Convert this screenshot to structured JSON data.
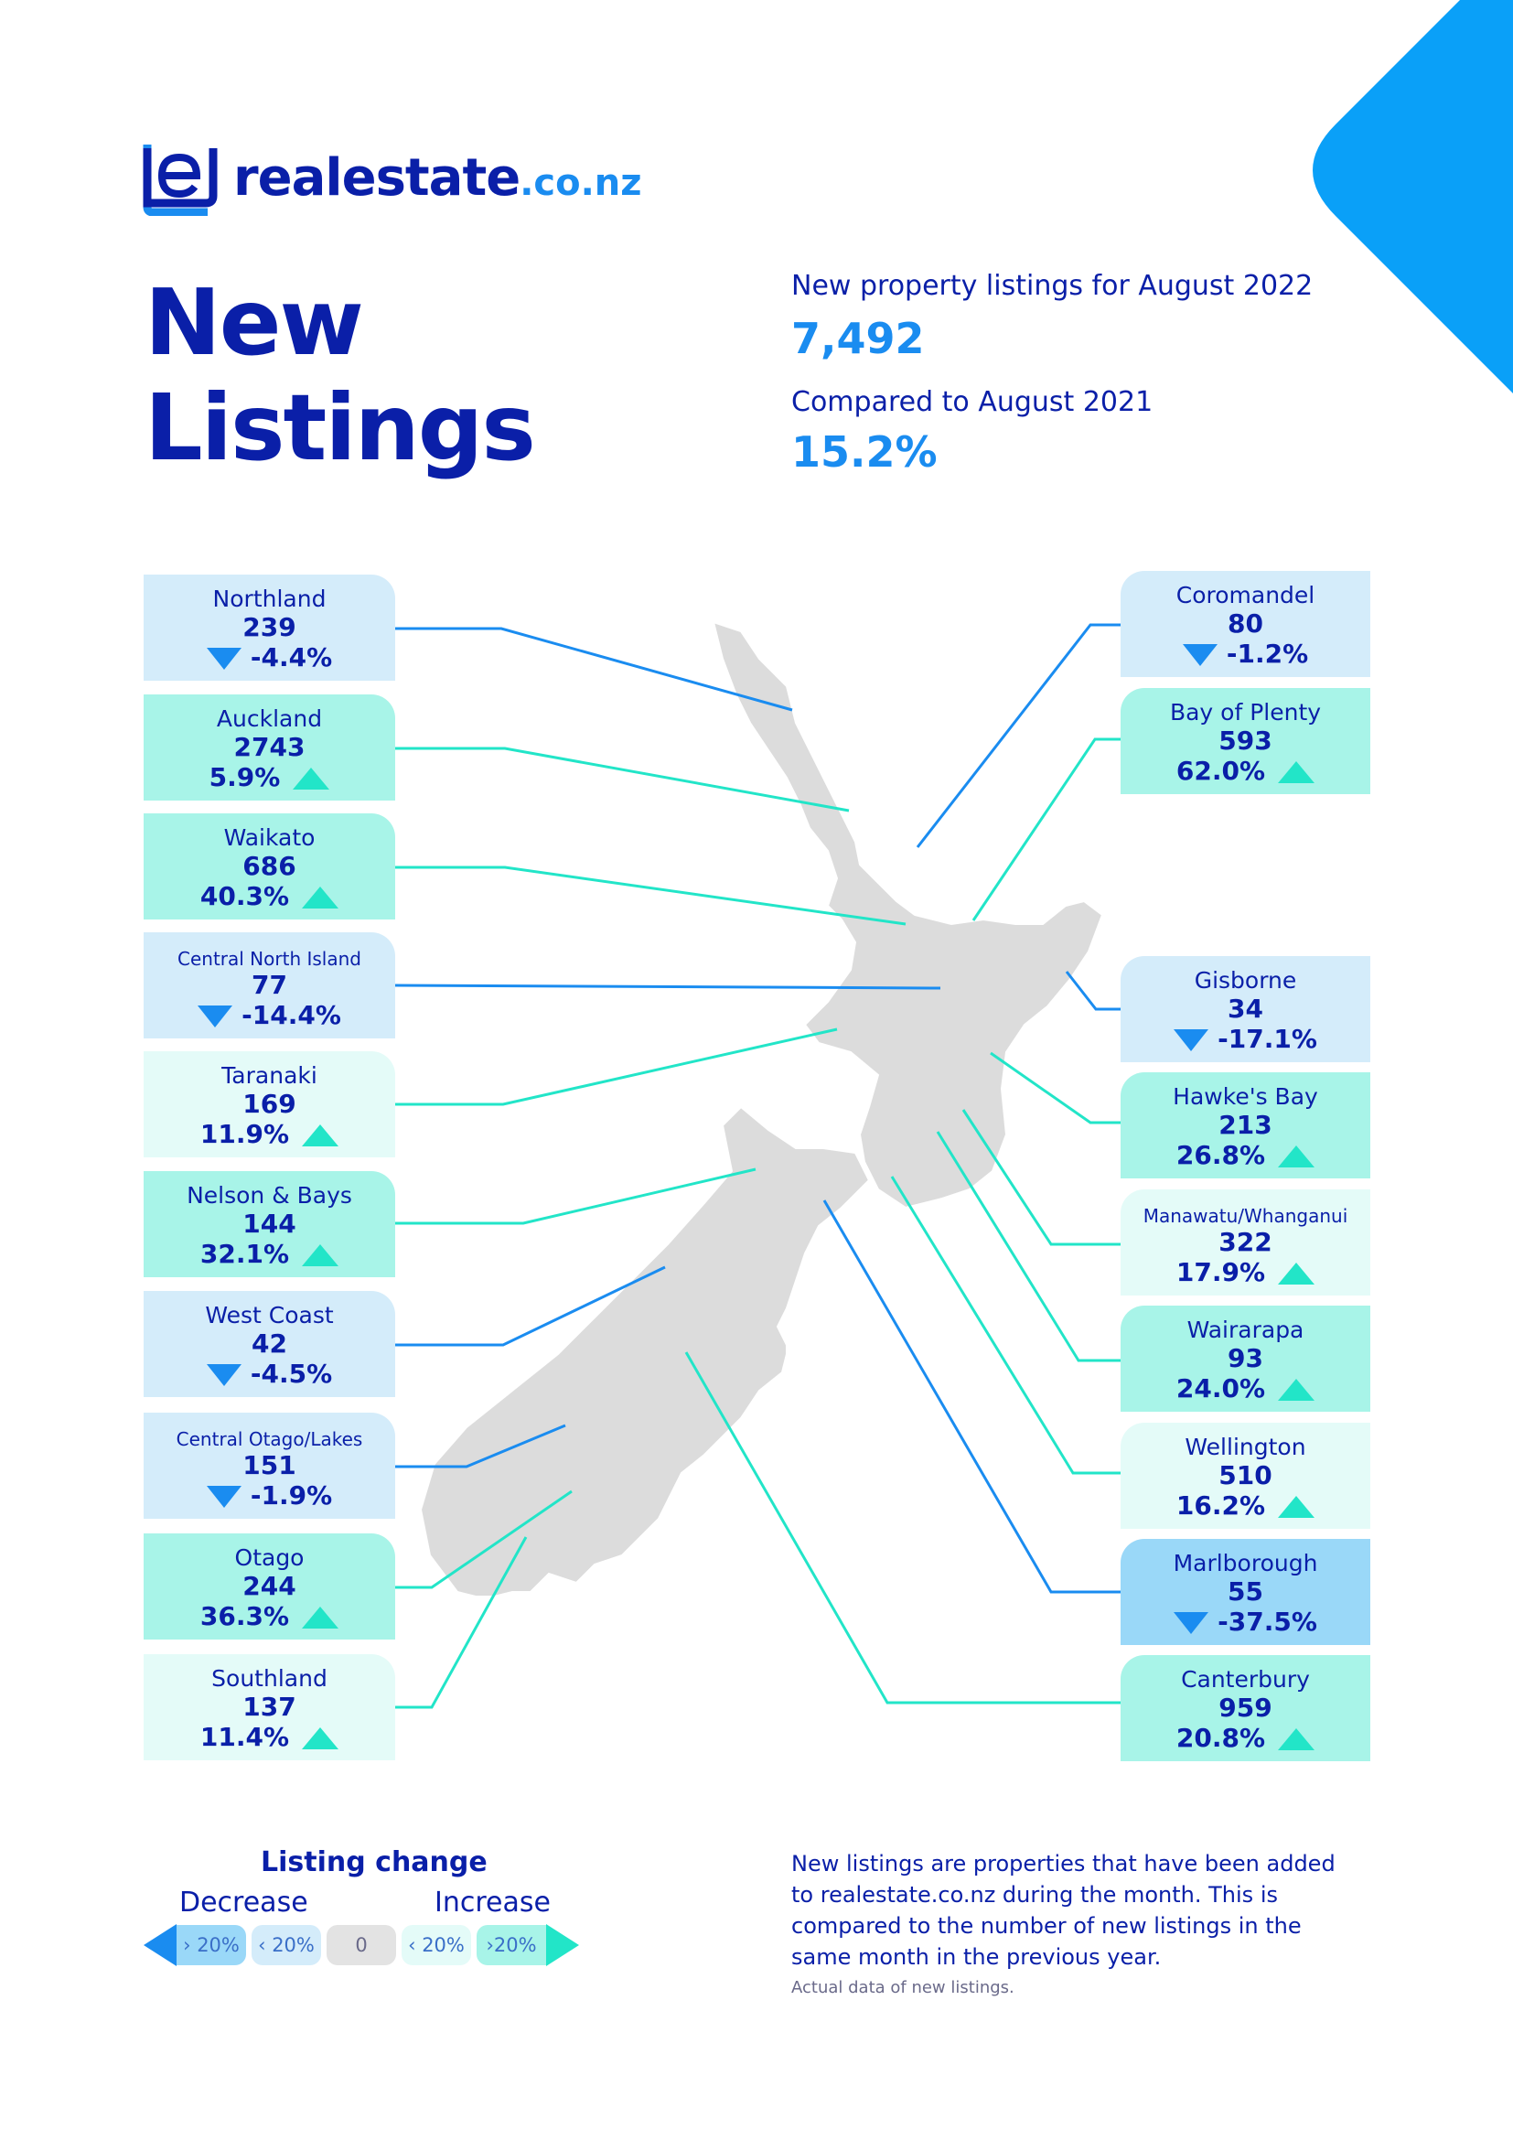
{
  "brand": {
    "name": "realestate",
    "tld": ".co.nz",
    "primary": "#0a1fa8",
    "accent": "#1a8cf0",
    "teal": "#22e5c8"
  },
  "title": {
    "line1": "New",
    "line2": "Listings"
  },
  "stats": {
    "listings_label": "New property listings for August 2022",
    "listings_value": "7,492",
    "compare_label": "Compared to August 2021",
    "compare_value": "15.2%"
  },
  "regions": [
    {
      "name": "Northland",
      "count": "239",
      "change": "-4.4%",
      "direction": "down",
      "band": "decrease-lt20"
    },
    {
      "name": "Auckland",
      "count": "2743",
      "change": "5.9%",
      "direction": "up",
      "band": "increase-lt20"
    },
    {
      "name": "Waikato",
      "count": "686",
      "change": "40.3%",
      "direction": "up",
      "band": "increase-gt20"
    },
    {
      "name": "Central North Island",
      "count": "77",
      "change": "-14.4%",
      "direction": "down",
      "band": "decrease-lt20"
    },
    {
      "name": "Taranaki",
      "count": "169",
      "change": "11.9%",
      "direction": "up",
      "band": "increase-lt20"
    },
    {
      "name": "Nelson & Bays",
      "count": "144",
      "change": "32.1%",
      "direction": "up",
      "band": "increase-gt20"
    },
    {
      "name": "West Coast",
      "count": "42",
      "change": "-4.5%",
      "direction": "down",
      "band": "decrease-lt20"
    },
    {
      "name": "Central Otago/Lakes",
      "count": "151",
      "change": "-1.9%",
      "direction": "down",
      "band": "decrease-lt20"
    },
    {
      "name": "Otago",
      "count": "244",
      "change": "36.3%",
      "direction": "up",
      "band": "increase-gt20"
    },
    {
      "name": "Southland",
      "count": "137",
      "change": "11.4%",
      "direction": "up",
      "band": "increase-lt20"
    },
    {
      "name": "Coromandel",
      "count": "80",
      "change": "-1.2%",
      "direction": "down",
      "band": "decrease-lt20"
    },
    {
      "name": "Bay of Plenty",
      "count": "593",
      "change": "62.0%",
      "direction": "up",
      "band": "increase-gt20"
    },
    {
      "name": "Gisborne",
      "count": "34",
      "change": "-17.1%",
      "direction": "down",
      "band": "decrease-lt20"
    },
    {
      "name": "Hawke's Bay",
      "count": "213",
      "change": "26.8%",
      "direction": "up",
      "band": "increase-gt20"
    },
    {
      "name": "Manawatu/Whanganui",
      "count": "322",
      "change": "17.9%",
      "direction": "up",
      "band": "increase-lt20"
    },
    {
      "name": "Wairarapa",
      "count": "93",
      "change": "24.0%",
      "direction": "up",
      "band": "increase-gt20"
    },
    {
      "name": "Wellington",
      "count": "510",
      "change": "16.2%",
      "direction": "up",
      "band": "increase-lt20"
    },
    {
      "name": "Marlborough",
      "count": "55",
      "change": "-37.5%",
      "direction": "down",
      "band": "decrease-gt20"
    },
    {
      "name": "Canterbury",
      "count": "959",
      "change": "20.8%",
      "direction": "up",
      "band": "increase-gt20"
    }
  ],
  "legend": {
    "title": "Listing change",
    "decrease": "Decrease",
    "increase": "Increase",
    "items": [
      "› 20%",
      "‹ 20%",
      "0",
      "‹ 20%",
      "›20%"
    ],
    "colors": {
      "decrease-gt20": "#9ad8f8",
      "decrease-lt20": "#d4ecfa",
      "neutral": "#e3e3e3",
      "increase-lt20": "#e4fbf8",
      "increase-gt20": "#a8f4e8"
    }
  },
  "note": "New listings are properties that have been added to realestate.co.nz during the month. This is compared to the number of new listings in the same month in the previous year.",
  "note_small": "Actual data of new listings."
}
